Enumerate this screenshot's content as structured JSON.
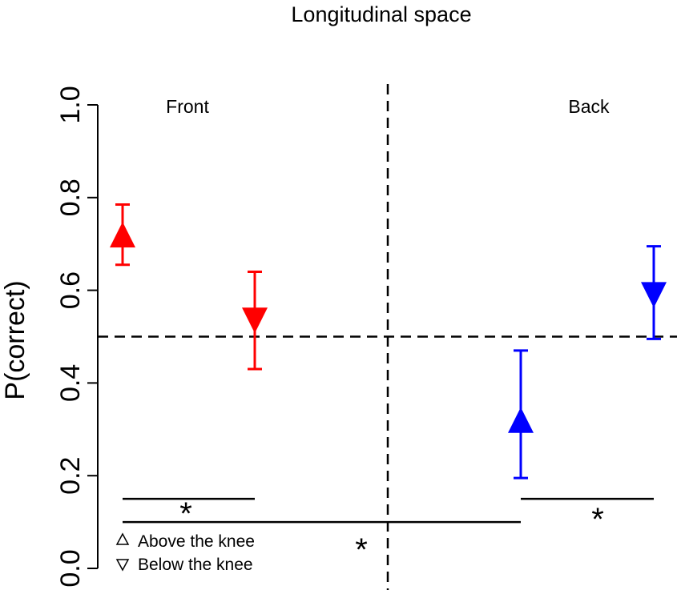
{
  "chart_data": {
    "type": "scatter",
    "title": "Longitudinal space",
    "xlabel": "",
    "ylabel": "P(correct)",
    "ylim": [
      0.0,
      1.0
    ],
    "yticks": [
      "0.0",
      "0.2",
      "0.4",
      "0.6",
      "0.8",
      "1.0"
    ],
    "chance_level": 0.5,
    "panels": [
      "Front",
      "Back"
    ],
    "series": [
      {
        "name": "Above the knee",
        "panel": "Front",
        "marker": "triangle-up",
        "color": "#ff0000",
        "y": 0.72,
        "lower": 0.655,
        "upper": 0.785
      },
      {
        "name": "Below the knee",
        "panel": "Front",
        "marker": "triangle-down",
        "color": "#ff0000",
        "y": 0.535,
        "lower": 0.43,
        "upper": 0.64
      },
      {
        "name": "Above the knee",
        "panel": "Back",
        "marker": "triangle-up",
        "color": "#0000ff",
        "y": 0.32,
        "lower": 0.195,
        "upper": 0.47
      },
      {
        "name": "Below the knee",
        "panel": "Back",
        "marker": "triangle-down",
        "color": "#0000ff",
        "y": 0.59,
        "lower": 0.495,
        "upper": 0.695
      }
    ],
    "significance": [
      {
        "label": "*",
        "from": "Front / Above the knee",
        "to": "Front / Below the knee",
        "level": 0.15
      },
      {
        "label": "*",
        "from": "Front / Above the knee",
        "to": "Back / Above the knee",
        "level": 0.1
      },
      {
        "label": "*",
        "from": "Back / Above the knee",
        "to": "Back / Below the knee",
        "level": 0.15
      }
    ],
    "legend": {
      "placement": "bottom-left",
      "entries": [
        {
          "label": "Above the knee",
          "marker": "triangle-up"
        },
        {
          "label": "Below the knee",
          "marker": "triangle-down"
        }
      ]
    },
    "grid": false
  }
}
